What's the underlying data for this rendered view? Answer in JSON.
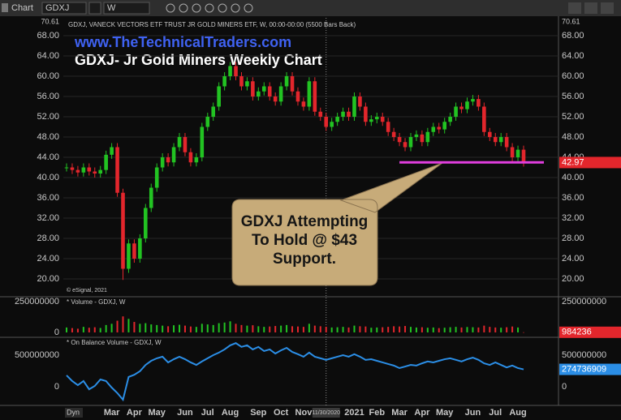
{
  "toolbar": {
    "app": "Chart",
    "symbol": "GDXJ",
    "interval": "W",
    "dyn_button": "Dyn"
  },
  "chart_data": [
    {
      "type": "candlestick",
      "subtitle": "www.TheTechnicalTraders.com",
      "title": "GDXJ- Jr Gold Miners Weekly Chart",
      "header": "GDXJ, VANECK VECTORS ETF TRUST JR GOLD MINERS ETF, W, 00:00-00:00 (5500 Bars Back)",
      "credit": "© eSignal, 2021",
      "annotation": "GDXJ Attempting To Hold @ $43 Support.",
      "scale_top": 70.61,
      "support_level": 43,
      "support_color": "#e23ee0",
      "up_color": "#22c322",
      "down_color": "#e3262c",
      "open": [
        42,
        42,
        41.5,
        41,
        42,
        41.2,
        40.8,
        41.5,
        44.5,
        46,
        37,
        22,
        27,
        24,
        28,
        34,
        38,
        42,
        44,
        43,
        46,
        48,
        45,
        43,
        44,
        50,
        52,
        54,
        58,
        60,
        62,
        60,
        58,
        59,
        56,
        57,
        58,
        56,
        55,
        58,
        60,
        57,
        55,
        54,
        59,
        53,
        52,
        50,
        51,
        52,
        53,
        52,
        56,
        54,
        51,
        51.5,
        52,
        51,
        49,
        48,
        47,
        46,
        48,
        48.5,
        47,
        49,
        50,
        49.5,
        51,
        52,
        54,
        53.5,
        55,
        55.5,
        54,
        49,
        48,
        47,
        48,
        46,
        44,
        45.5
      ],
      "high": [
        42.8,
        42.8,
        42.3,
        42.8,
        42.8,
        42,
        42.3,
        45.3,
        46.8,
        46.8,
        37.8,
        27.8,
        27.8,
        28.8,
        34.8,
        38.8,
        42.8,
        44.8,
        44.8,
        46.8,
        48.8,
        48.8,
        45.8,
        44.8,
        50.8,
        52.8,
        54.8,
        58.8,
        60.8,
        62.8,
        62.8,
        60.8,
        59.8,
        59.8,
        57.8,
        58.8,
        58.8,
        56.8,
        58.8,
        60.8,
        60.8,
        57.8,
        55.8,
        59.8,
        59.8,
        53.8,
        52.8,
        51.8,
        52.8,
        53.8,
        53.8,
        56.8,
        56.8,
        54.8,
        52.3,
        52.8,
        52.8,
        51.8,
        49.8,
        48.8,
        47.8,
        48.8,
        49.3,
        49.3,
        49.8,
        50.8,
        50.8,
        51.8,
        52.8,
        54.8,
        54.8,
        55.8,
        56.3,
        56.3,
        54.8,
        49.8,
        48.8,
        48.8,
        48.8,
        46.8,
        46.3,
        46.3
      ],
      "low": [
        41.2,
        40.7,
        40.2,
        40.2,
        40.4,
        40,
        40,
        40.7,
        43.7,
        36.2,
        19.8,
        21.2,
        23.2,
        23.2,
        27.2,
        33.2,
        37.2,
        41.2,
        42.2,
        42.2,
        45.2,
        44.2,
        42.2,
        42.2,
        43.2,
        49.2,
        51.2,
        53.2,
        57.2,
        59.2,
        59.2,
        57.2,
        57.2,
        55.2,
        55.2,
        56.2,
        55.2,
        54.2,
        54.2,
        57.2,
        56.2,
        54.2,
        53.2,
        53.2,
        52.2,
        51.2,
        49.2,
        49.2,
        50.2,
        51.2,
        51.2,
        51.2,
        53.2,
        50.2,
        50.2,
        50.7,
        50.2,
        48.2,
        47.2,
        46.2,
        45.2,
        45.2,
        47.2,
        46.2,
        46.2,
        48.2,
        48.7,
        48.7,
        50.2,
        51.2,
        52.7,
        52.7,
        54.2,
        53.2,
        48.2,
        47.2,
        46.2,
        46.2,
        45.2,
        43.2,
        43.2,
        42.17
      ],
      "close": [
        42,
        41.5,
        41,
        42,
        41.2,
        40.8,
        41.5,
        44.5,
        46,
        37,
        22,
        27,
        24,
        28,
        34,
        38,
        42,
        44,
        43,
        46,
        48,
        45,
        43,
        44,
        50,
        52,
        54,
        58,
        60,
        62,
        60,
        58,
        59,
        56,
        57,
        58,
        56,
        55,
        58,
        60,
        57,
        55,
        54,
        59,
        53,
        52,
        50,
        51,
        52,
        53,
        52,
        56,
        54,
        51,
        51.5,
        52,
        51,
        49,
        48,
        47,
        46,
        48,
        48.5,
        47,
        49,
        50,
        49.5,
        51,
        52,
        54,
        53.5,
        55,
        55.5,
        54,
        49,
        48,
        47,
        48,
        46,
        44,
        45.5,
        42.97
      ],
      "ylim": [
        16.64,
        71.52
      ],
      "yticks": [
        {
          "value": 20,
          "label": "20.00"
        },
        {
          "value": 24,
          "label": "24.00"
        },
        {
          "value": 28,
          "label": "28.00"
        },
        {
          "value": 32,
          "label": "32.00"
        },
        {
          "value": 36,
          "label": "36.00"
        },
        {
          "value": 40,
          "label": "40.00"
        },
        {
          "value": 44,
          "label": "44.00"
        },
        {
          "value": 48,
          "label": "48.00"
        },
        {
          "value": 52,
          "label": "52.00"
        },
        {
          "value": 56,
          "label": "56.00"
        },
        {
          "value": 60,
          "label": "60.00"
        },
        {
          "value": 64,
          "label": "64.00"
        },
        {
          "value": 68,
          "label": "68.00"
        }
      ],
      "grid": true
    },
    {
      "type": "bar",
      "title": "* Volume - GDXJ, W",
      "values": [
        40000000,
        35000000,
        30000000,
        45000000,
        38000000,
        42000000,
        36000000,
        60000000,
        70000000,
        95000000,
        130000000,
        110000000,
        85000000,
        70000000,
        75000000,
        65000000,
        60000000,
        55000000,
        50000000,
        58000000,
        62000000,
        55000000,
        48000000,
        45000000,
        70000000,
        65000000,
        60000000,
        75000000,
        80000000,
        90000000,
        70000000,
        60000000,
        55000000,
        58000000,
        50000000,
        45000000,
        48000000,
        52000000,
        55000000,
        60000000,
        50000000,
        48000000,
        45000000,
        70000000,
        55000000,
        50000000,
        45000000,
        40000000,
        42000000,
        45000000,
        40000000,
        55000000,
        50000000,
        48000000,
        38000000,
        40000000,
        42000000,
        45000000,
        50000000,
        48000000,
        52000000,
        45000000,
        40000000,
        42000000,
        38000000,
        40000000,
        35000000,
        38000000,
        42000000,
        45000000,
        40000000,
        44000000,
        42000000,
        40000000,
        55000000,
        45000000,
        40000000,
        38000000,
        42000000,
        48000000,
        40000000,
        984236
      ],
      "ylim": [
        -20000000,
        283000000
      ],
      "yticks": [
        0,
        250000000
      ]
    },
    {
      "type": "line",
      "title": "* On Balance Volume - GDXJ, W",
      "color": "#2b8ee6",
      "categories": [
        null,
        null,
        null,
        null,
        null,
        null,
        null,
        null,
        "Mar",
        null,
        null,
        null,
        "Apr",
        null,
        null,
        null,
        "May",
        null,
        null,
        null,
        null,
        "Jun",
        null,
        null,
        null,
        "Jul",
        null,
        null,
        null,
        "Aug",
        null,
        null,
        null,
        null,
        "Sep",
        null,
        null,
        null,
        "Oct",
        null,
        null,
        null,
        "Nov",
        null,
        null,
        null,
        "11/30/2020",
        null,
        null,
        null,
        null,
        "2021",
        null,
        null,
        null,
        "Feb",
        null,
        null,
        null,
        "Mar",
        null,
        null,
        null,
        "Apr",
        null,
        null,
        null,
        "May",
        null,
        null,
        null,
        null,
        "Jun",
        null,
        null,
        null,
        "Jul",
        null,
        null,
        null,
        "Aug",
        null
      ],
      "values": [
        180000000,
        90000000,
        25000000,
        90000000,
        -40000000,
        13000000,
        115000000,
        90000000,
        -13000000,
        -100000000,
        -205000000,
        155000000,
        190000000,
        245000000,
        345000000,
        410000000,
        450000000,
        475000000,
        385000000,
        435000000,
        475000000,
        435000000,
        385000000,
        345000000,
        400000000,
        450000000,
        500000000,
        540000000,
        590000000,
        655000000,
        690000000,
        630000000,
        655000000,
        590000000,
        630000000,
        565000000,
        590000000,
        525000000,
        575000000,
        615000000,
        550000000,
        515000000,
        475000000,
        540000000,
        475000000,
        450000000,
        425000000,
        450000000,
        475000000,
        500000000,
        475000000,
        515000000,
        475000000,
        425000000,
        435000000,
        410000000,
        385000000,
        360000000,
        335000000,
        295000000,
        320000000,
        345000000,
        335000000,
        370000000,
        400000000,
        385000000,
        410000000,
        435000000,
        450000000,
        425000000,
        400000000,
        435000000,
        460000000,
        425000000,
        370000000,
        345000000,
        385000000,
        345000000,
        305000000,
        335000000,
        295000000,
        274736909
      ],
      "ylim": [
        -295000000,
        769000000
      ],
      "yticks": [
        0,
        500000000
      ]
    }
  ]
}
